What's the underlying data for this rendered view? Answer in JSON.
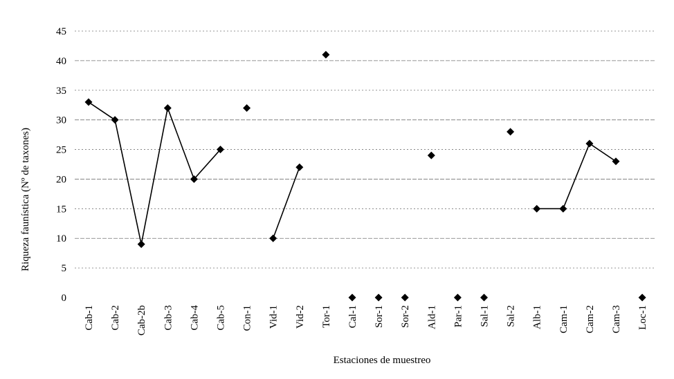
{
  "chart_data": {
    "type": "line",
    "title": "",
    "xlabel": "Estaciones de muestreo",
    "ylabel": "Riqueza faunística (Nº de taxones)",
    "ylim": [
      0,
      45
    ],
    "yticks": [
      0,
      5,
      10,
      15,
      20,
      25,
      30,
      35,
      40,
      45
    ],
    "grid": true,
    "legend": "none",
    "categories": [
      "Cab-1",
      "Cab-2",
      "Cab-2b",
      "Cab-3",
      "Cab-4",
      "Cab-5",
      "Con-1",
      "Vid-1",
      "Vid-2",
      "Tor-1",
      "Cal-1",
      "Sor-1",
      "Sor-2",
      "Ald-1",
      "Par-1",
      "Sal-1",
      "Sal-2",
      "Alb-1",
      "Cam-1",
      "Cam-2",
      "Cam-3",
      "Loc-1"
    ],
    "values": [
      33,
      30,
      9,
      32,
      20,
      25,
      32,
      10,
      22,
      41,
      0,
      0,
      0,
      24,
      0,
      0,
      28,
      15,
      15,
      26,
      23,
      0
    ],
    "line_segments": [
      [
        0,
        5
      ],
      [
        7,
        8
      ],
      [
        17,
        20
      ]
    ],
    "marker": "diamond",
    "color": "#000000"
  }
}
